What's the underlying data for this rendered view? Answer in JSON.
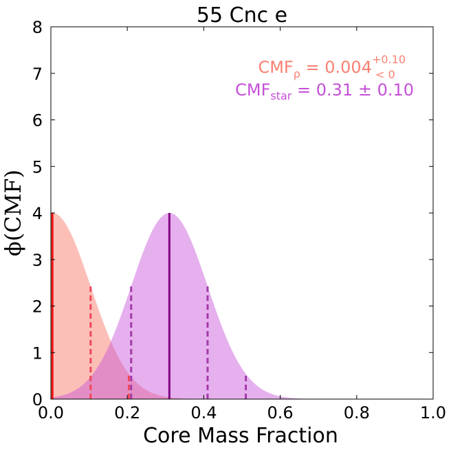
{
  "chart_data": {
    "type": "area",
    "title": "55 Cnc e",
    "xlabel": "Core Mass Fraction",
    "ylabel": "ϕ(CMF)",
    "xlim": [
      0.0,
      1.0
    ],
    "ylim": [
      0,
      8
    ],
    "x_ticks": [
      "0.0",
      "0.2",
      "0.4",
      "0.6",
      "0.8",
      "1.0"
    ],
    "y_ticks": [
      "0",
      "1",
      "2",
      "3",
      "4",
      "5",
      "6",
      "7",
      "8"
    ],
    "grid": false,
    "series": [
      {
        "color": "#fa8072",
        "mean": 0.004,
        "sigma": 0.1,
        "peak": 4.0,
        "median_line_color": "#ee1111",
        "sigma_line_color": "#f0485a",
        "sigma_lines_x": [
          0.104,
          0.204
        ],
        "annotation": {
          "base": "CMF",
          "subscript": "ρ",
          "equals": " = 0.004",
          "sup": "+0.10",
          "sub": "< 0"
        }
      },
      {
        "color": "#c54fd8",
        "mean": 0.31,
        "sigma": 0.1,
        "peak": 4.0,
        "median_line_color": "#800080",
        "sigma_line_color": "#a43aa8",
        "sigma_lines_x": [
          0.21,
          0.41,
          0.51
        ],
        "annotation": {
          "base": "CMF",
          "subscript": "star",
          "equals": " = 0.31 ± 0.10"
        }
      }
    ]
  }
}
